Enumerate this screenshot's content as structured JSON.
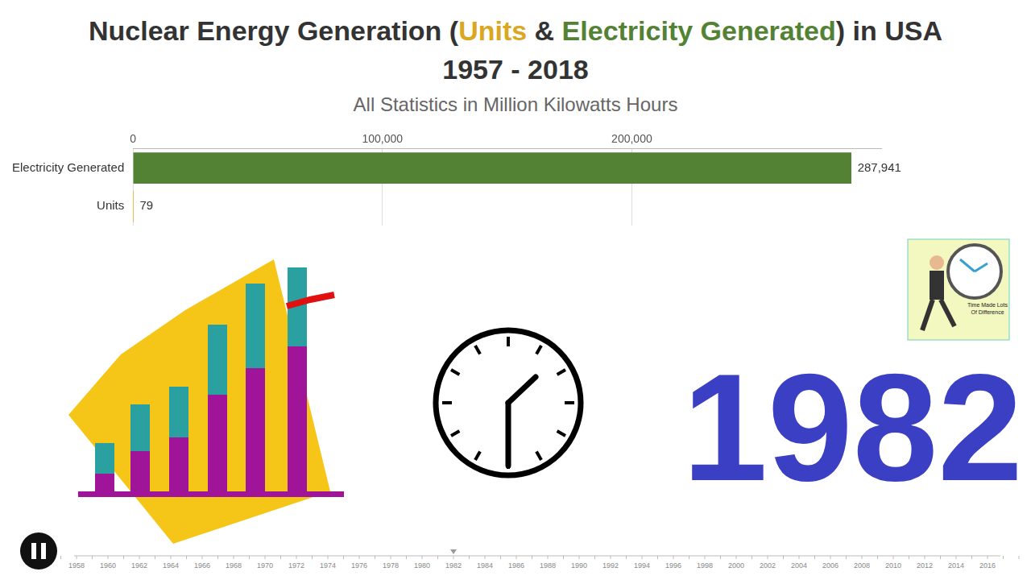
{
  "chart_data": {
    "type": "bar",
    "orientation": "horizontal",
    "title": "Nuclear Energy Generation (Units & Electricity Generated) in USA",
    "period": "1957 - 2018",
    "subtitle": "All Statistics in Million Kilowatts Hours",
    "categories": [
      "Electricity Generated",
      "Units"
    ],
    "values": [
      287941,
      79
    ],
    "value_labels": [
      "287,941",
      "79"
    ],
    "colors": [
      "#548235",
      "#d9a81e"
    ],
    "data_labels": true,
    "xlim": [
      0,
      300000
    ],
    "xticks": [
      0,
      {
        "value": 100000,
        "label": "100,000"
      },
      {
        "value": 200000,
        "label": "200,000"
      }
    ],
    "grid": true
  },
  "timeline": {
    "ticks": [
      1958,
      1960,
      1962,
      1964,
      1966,
      1968,
      1970,
      1972,
      1974,
      1976,
      1978,
      1980,
      1982,
      1984,
      1986,
      1988,
      1990,
      1992,
      1994,
      1996,
      1998,
      2000,
      2002,
      2004,
      2006,
      2008,
      2010,
      2012,
      2014,
      2016
    ],
    "year": 1982
  },
  "logo_text": "Time Made Lots Of Difference"
}
